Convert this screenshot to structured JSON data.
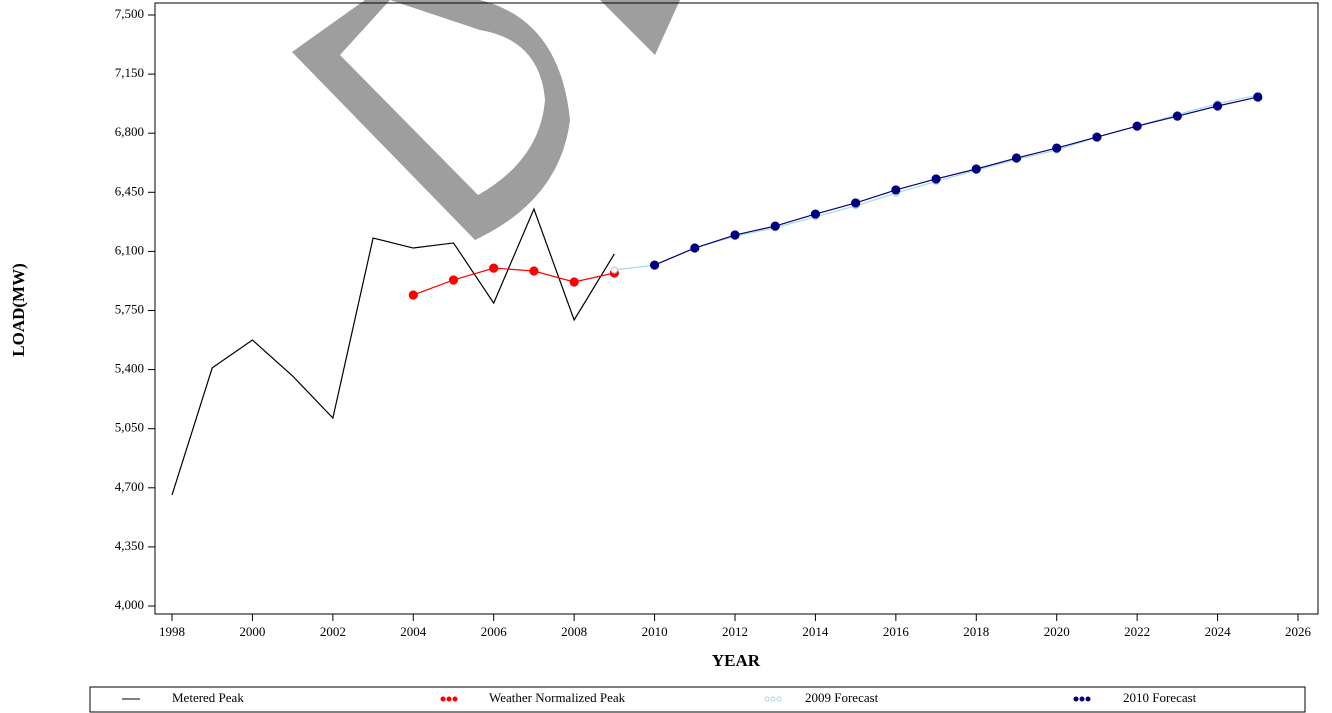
{
  "chart_data": {
    "type": "line",
    "x_label": "YEAR",
    "y_label": "LOAD(MW)",
    "xlim": [
      1997.6,
      2026.5
    ],
    "xticks": [
      1998,
      2000,
      2002,
      2004,
      2006,
      2008,
      2010,
      2012,
      2014,
      2016,
      2018,
      2020,
      2022,
      2024,
      2026
    ],
    "ylim": [
      4000,
      7500
    ],
    "yticks": [
      {
        "value": 4000,
        "label": "4,000"
      },
      {
        "value": 4350,
        "label": "4,350"
      },
      {
        "value": 4700,
        "label": "4,700"
      },
      {
        "value": 5050,
        "label": "5,050"
      },
      {
        "value": 5400,
        "label": "5,400"
      },
      {
        "value": 5750,
        "label": "5,750"
      },
      {
        "value": 6100,
        "label": "6,100"
      },
      {
        "value": 6450,
        "label": "6,450"
      },
      {
        "value": 6800,
        "label": "6,800"
      },
      {
        "value": 7150,
        "label": "7,150"
      },
      {
        "value": 7500,
        "label": "7,500"
      }
    ],
    "series": [
      {
        "name": "Metered Peak",
        "color": "#000000",
        "marker": "none",
        "x": [
          1998,
          1999,
          2000,
          2001,
          2002,
          2003,
          2004,
          2005,
          2006,
          2007,
          2008,
          2009
        ],
        "values": [
          4657,
          5410,
          5575,
          5362,
          5113,
          6179,
          6120,
          6150,
          5794,
          6351,
          5694,
          6085
        ]
      },
      {
        "name": "Weather Normalized Peak",
        "color": "#ff0000",
        "marker": "filled",
        "x": [
          2004,
          2005,
          2006,
          2007,
          2008,
          2009
        ],
        "values": [
          5842,
          5931,
          6001,
          5984,
          5919,
          5972
        ]
      },
      {
        "name": "2009 Forecast",
        "color": "#a8d8ea",
        "marker": "hollow",
        "x": [
          2009,
          2010,
          2011,
          2012,
          2013,
          2014,
          2015,
          2016,
          2017,
          2018,
          2019,
          2020,
          2021,
          2022,
          2023,
          2024,
          2025
        ],
        "values": [
          5990,
          6019,
          6120,
          6190,
          6240,
          6305,
          6370,
          6445,
          6515,
          6580,
          6645,
          6700,
          6777,
          6842,
          6910,
          6975,
          7025
        ]
      },
      {
        "name": "2010 Forecast",
        "color": "#00007f",
        "marker": "filled",
        "x": [
          2010,
          2011,
          2012,
          2013,
          2014,
          2015,
          2016,
          2017,
          2018,
          2019,
          2020,
          2021,
          2022,
          2023,
          2024,
          2025
        ],
        "values": [
          6019,
          6120,
          6197,
          6250,
          6321,
          6387,
          6464,
          6529,
          6588,
          6653,
          6712,
          6777,
          6842,
          6901,
          6961,
          7014
        ]
      }
    ]
  }
}
